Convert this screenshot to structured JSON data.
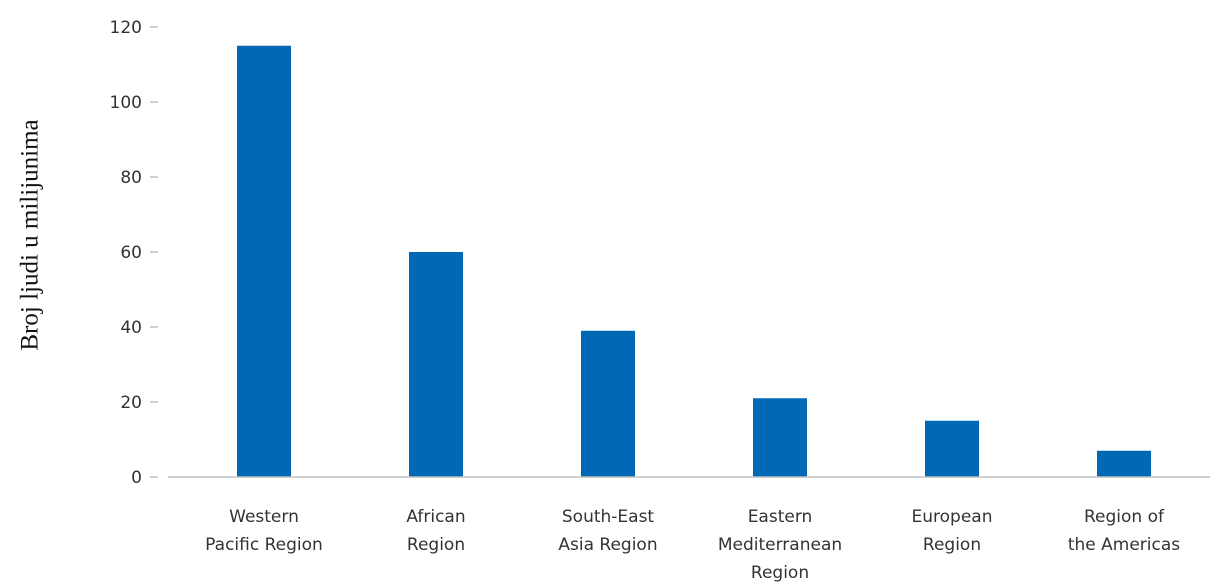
{
  "chart_data": {
    "type": "bar",
    "title": "",
    "xlabel": "",
    "ylabel": "Broj ljudi u milijunima",
    "ylim": [
      0,
      120
    ],
    "yticks": [
      0,
      20,
      40,
      60,
      80,
      100,
      120
    ],
    "categories": [
      [
        "Western",
        "Pacific Region"
      ],
      [
        "African",
        "Region"
      ],
      [
        "South-East",
        "Asia Region"
      ],
      [
        "Eastern",
        "Mediterranean",
        "Region"
      ],
      [
        "European",
        "Region"
      ],
      [
        "Region of",
        "the Americas"
      ]
    ],
    "values": [
      115,
      60,
      39,
      21,
      15,
      7
    ],
    "bar_color": "#0068b5",
    "axis_color": "#bfbfbf",
    "grid": false,
    "legend": "none"
  }
}
